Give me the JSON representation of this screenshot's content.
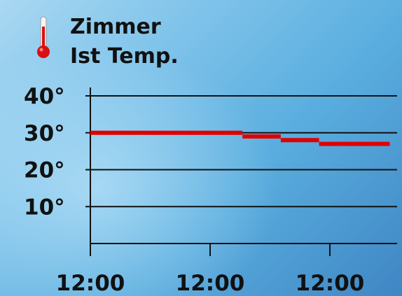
{
  "header": {
    "line1": "Zimmer",
    "line2": "Ist Temp."
  },
  "icons": {
    "thermometer": "thermometer-icon"
  },
  "colors": {
    "series": "#e00000",
    "grid": "#111111"
  },
  "chart_data": {
    "type": "line",
    "title": "",
    "xlabel": "",
    "ylabel": "",
    "ylim": [
      0,
      40
    ],
    "y_ticks": [
      {
        "value": 40,
        "label": "40°"
      },
      {
        "value": 30,
        "label": "30°"
      },
      {
        "value": 20,
        "label": "20°"
      },
      {
        "value": 10,
        "label": "10°"
      }
    ],
    "x_ticks": [
      {
        "x": 0,
        "label": "12:00"
      },
      {
        "x": 1,
        "label": "12:00"
      },
      {
        "x": 2,
        "label": "12:00"
      }
    ],
    "xlim": [
      0,
      2.5
    ],
    "grid": true,
    "series": [
      {
        "step_segments": [
          {
            "x0": 0.0,
            "x1": 1.27,
            "y": 30.0
          },
          {
            "x0": 1.27,
            "x1": 1.59,
            "y": 29.0
          },
          {
            "x0": 1.59,
            "x1": 1.91,
            "y": 28.0
          },
          {
            "x0": 1.91,
            "x1": 2.5,
            "y": 27.0
          }
        ]
      }
    ]
  }
}
